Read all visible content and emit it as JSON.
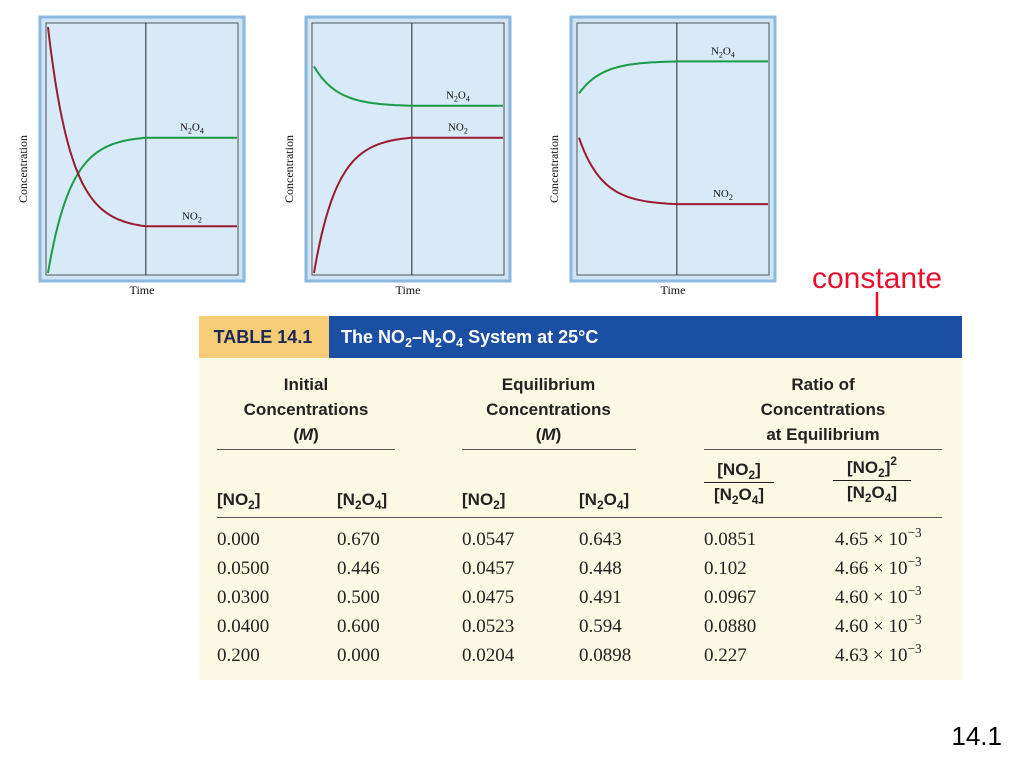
{
  "chart_data": [
    {
      "type": "line",
      "xlabel": "Time",
      "ylabel": "Concentration",
      "series": [
        {
          "name": "N2O4",
          "color": "#1a9b48",
          "start": 0.0,
          "end": 0.55
        },
        {
          "name": "NO2",
          "color": "#9b1b30",
          "start": 1.0,
          "end": 0.19
        }
      ],
      "labels": [
        {
          "series": "N2O4",
          "prefix": "N",
          "sub1": "2",
          "mid": "O",
          "sub2": "4"
        },
        {
          "series": "NO2",
          "prefix": "NO",
          "sub1": "2",
          "mid": "",
          "sub2": ""
        }
      ]
    },
    {
      "type": "line",
      "xlabel": "Time",
      "ylabel": "Concentration",
      "series": [
        {
          "name": "N2O4",
          "color": "#1a9b48",
          "start": 0.84,
          "end": 0.68
        },
        {
          "name": "NO2",
          "color": "#9b1b30",
          "start": 0.0,
          "end": 0.55
        }
      ],
      "labels": [
        {
          "series": "N2O4",
          "prefix": "N",
          "sub1": "2",
          "mid": "O",
          "sub2": "4"
        },
        {
          "series": "NO2",
          "prefix": "NO",
          "sub1": "2",
          "mid": "",
          "sub2": ""
        }
      ]
    },
    {
      "type": "line",
      "xlabel": "Time",
      "ylabel": "Concentration",
      "series": [
        {
          "name": "N2O4",
          "color": "#1a9b48",
          "start": 0.73,
          "end": 0.86
        },
        {
          "name": "NO2",
          "color": "#9b1b30",
          "start": 0.55,
          "end": 0.28
        }
      ],
      "labels": [
        {
          "series": "N2O4",
          "prefix": "N",
          "sub1": "2",
          "mid": "O",
          "sub2": "4"
        },
        {
          "series": "NO2",
          "prefix": "NO",
          "sub1": "2",
          "mid": "",
          "sub2": ""
        }
      ]
    }
  ],
  "annotation": "constante",
  "slide_number": "14.1",
  "table": {
    "badge": "TABLE 14.1",
    "title_parts": [
      "The NO",
      "2",
      "–N",
      "2",
      "O",
      "4",
      " System at 25°C"
    ],
    "groups": {
      "initial": {
        "line1": "Initial",
        "line2": "Concentrations",
        "line3_open": "(",
        "line3_italic": "M",
        "line3_close": ")"
      },
      "equilibrium": {
        "line1": "Equilibrium",
        "line2": "Concentrations",
        "line3_open": "(",
        "line3_italic": "M",
        "line3_close": ")"
      },
      "ratio": {
        "line1": "Ratio of",
        "line2": "Concentrations",
        "line3": "at Equilibrium"
      }
    },
    "col_no2": "[NO",
    "col_no2_sub": "2",
    "col_no2_close": "]",
    "col_n2o4_a": "[N",
    "col_n2o4_sub1": "2",
    "col_n2o4_b": "O",
    "col_n2o4_sub2": "4",
    "col_n2o4_close": "]",
    "ratio2_exp": "2",
    "times": "× 10",
    "exp": "−3",
    "rows": [
      {
        "i_no2": "0.000",
        "i_n2o4": "0.670",
        "e_no2": "0.0547",
        "e_n2o4": "0.643",
        "r1": "0.0851",
        "r2": "4.65"
      },
      {
        "i_no2": "0.0500",
        "i_n2o4": "0.446",
        "e_no2": "0.0457",
        "e_n2o4": "0.448",
        "r1": "0.102",
        "r2": "4.66"
      },
      {
        "i_no2": "0.0300",
        "i_n2o4": "0.500",
        "e_no2": "0.0475",
        "e_n2o4": "0.491",
        "r1": "0.0967",
        "r2": "4.60"
      },
      {
        "i_no2": "0.0400",
        "i_n2o4": "0.600",
        "e_no2": "0.0523",
        "e_n2o4": "0.594",
        "r1": "0.0880",
        "r2": "4.60"
      },
      {
        "i_no2": "0.200",
        "i_n2o4": "0.000",
        "e_no2": "0.0204",
        "e_n2o4": "0.0898",
        "r1": "0.227",
        "r2": "4.63"
      }
    ]
  }
}
